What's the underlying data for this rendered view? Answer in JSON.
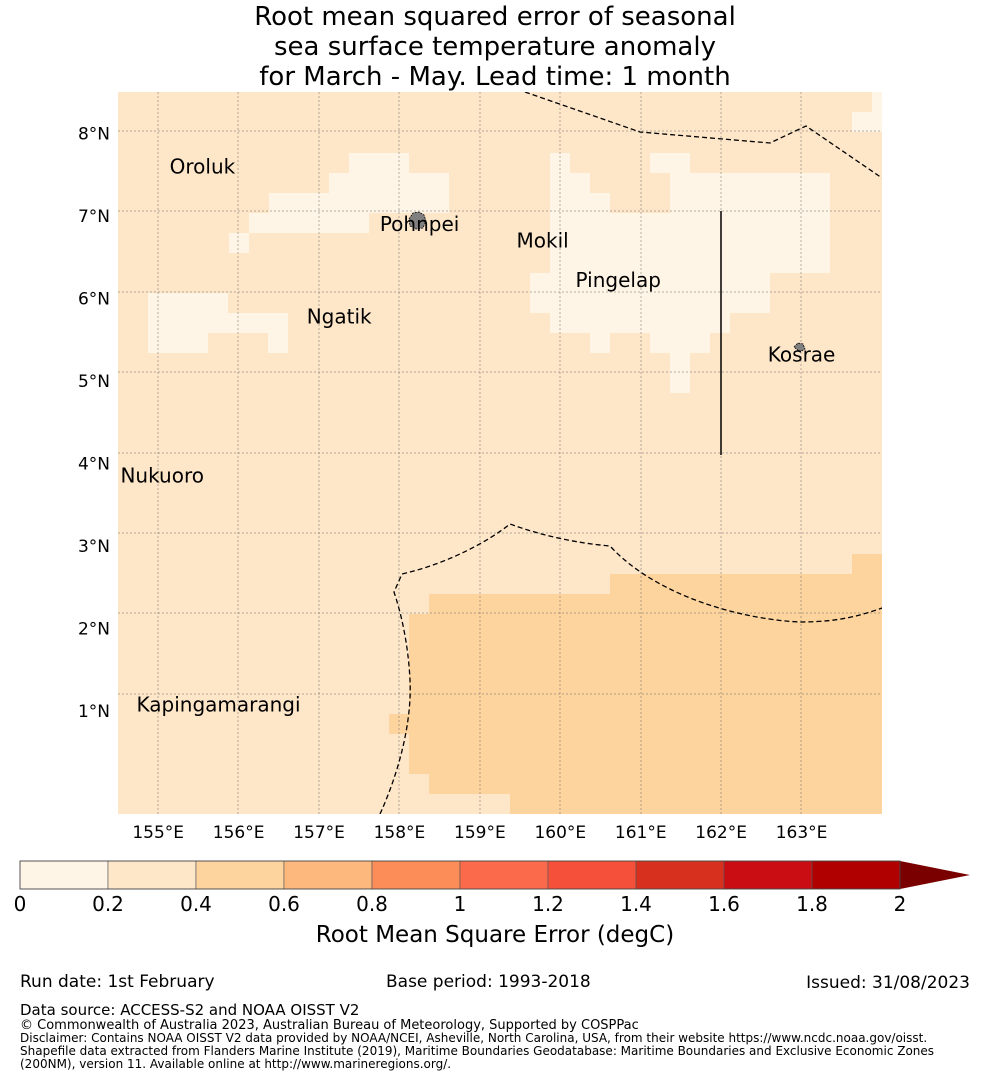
{
  "title": {
    "line1": "Root mean squared error of seasonal",
    "line2": "sea surface temperature anomaly",
    "line3": "for March - May. Lead time: 1 month"
  },
  "map": {
    "lon_range": [
      154.5,
      164.0
    ],
    "lat_range": [
      -0.25,
      8.5
    ],
    "lon_ticks": [
      "155°E",
      "156°E",
      "157°E",
      "158°E",
      "159°E",
      "160°E",
      "161°E",
      "162°E",
      "163°E"
    ],
    "lat_ticks": [
      "1°N",
      "2°N",
      "3°N",
      "4°N",
      "5°N",
      "6°N",
      "7°N",
      "8°N"
    ],
    "grid": true,
    "colors": {
      "bin_0_0.2": "#fff5e6",
      "bin_0.2_0.4": "#fee6c9",
      "bin_0.4_0.6": "#fdd49d",
      "land": "#808080"
    },
    "labels": [
      {
        "name": "Oroluk",
        "lon": 155.55,
        "lat": 7.6
      },
      {
        "name": "Pohnpei",
        "lon": 158.25,
        "lat": 6.9
      },
      {
        "name": "Mokil",
        "lon": 159.78,
        "lat": 6.7
      },
      {
        "name": "Pingelap",
        "lon": 160.72,
        "lat": 6.22
      },
      {
        "name": "Ngatik",
        "lon": 157.25,
        "lat": 5.78
      },
      {
        "name": "Kosrae",
        "lon": 163.0,
        "lat": 5.32
      },
      {
        "name": "Nukuoro",
        "lon": 155.05,
        "lat": 3.85
      },
      {
        "name": "Kapingamarangi",
        "lon": 155.75,
        "lat": 1.08
      }
    ]
  },
  "colorbar": {
    "title": "Root Mean Square Error (degC)",
    "ticks": [
      "0",
      "0.2",
      "0.4",
      "0.6",
      "0.8",
      "1",
      "1.2",
      "1.4",
      "1.6",
      "1.8",
      "2"
    ],
    "colors": [
      "#fff5e6",
      "#fee6c9",
      "#fdd49d",
      "#fdb97d",
      "#fc8d59",
      "#fb6a4a",
      "#f5503a",
      "#d7301f",
      "#c90d13",
      "#b00000"
    ],
    "extend_color": "#7a0000"
  },
  "footer": {
    "run_date": "Run date: 1st February",
    "base_period": "Base period: 1993-2018",
    "issued": "Issued: 31/08/2023",
    "data_source": "Data source: ACCESS-S2 and NOAA OISST V2",
    "copyright": "© Commonwealth of Australia 2023, Australian Bureau of Meteorology, Supported by COSPPac",
    "disclaimer1": "Disclaimer: Contains NOAA OISST V2 data provided by NOAA/NCEI, Asheville, North Carolina, USA, from their website https://www.ncdc.noaa.gov/oisst.",
    "disclaimer2": "Shapefile data extracted from Flanders Marine Institute (2019), Maritime Boundaries Geodatabase: Maritime Boundaries and Exclusive Economic Zones",
    "disclaimer3": "(200NM), version 11. Available online at http://www.marineregions.org/."
  }
}
